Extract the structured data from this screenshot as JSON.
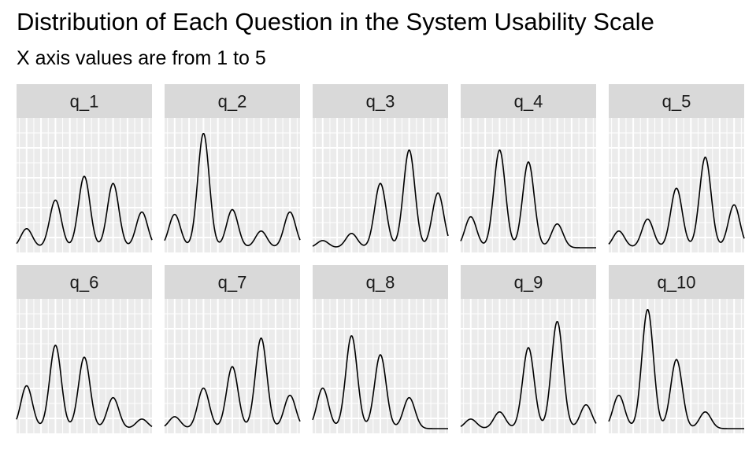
{
  "title": "Distribution of Each Question in the System Usability Scale",
  "subtitle": "X axis values are from 1 to 5",
  "colors": {
    "panel_background": "#ebebeb",
    "strip_background": "#d9d9d9",
    "grid": "#ffffff",
    "line": "#000000"
  },
  "chart_data": {
    "type": "line",
    "plot_kind": "density",
    "title": "Distribution of Each Question in the System Usability Scale",
    "subtitle": "X axis values are from 1 to 5",
    "facet_layout": "2 rows x 5 columns",
    "xlabel": "",
    "ylabel": "",
    "x_range": [
      1,
      5
    ],
    "axes_text_shown": false,
    "grid": true,
    "bandwidth": 0.2,
    "panels": [
      {
        "label": "q_1",
        "proportions": [
          0.08,
          0.2,
          0.3,
          0.27,
          0.15
        ]
      },
      {
        "label": "q_2",
        "proportions": [
          0.14,
          0.48,
          0.16,
          0.07,
          0.15
        ]
      },
      {
        "label": "q_3",
        "proportions": [
          0.03,
          0.06,
          0.27,
          0.41,
          0.23
        ]
      },
      {
        "label": "q_4",
        "proportions": [
          0.13,
          0.41,
          0.36,
          0.1,
          0.0
        ]
      },
      {
        "label": "q_5",
        "proportions": [
          0.07,
          0.12,
          0.25,
          0.38,
          0.18
        ]
      },
      {
        "label": "q_6",
        "proportions": [
          0.18,
          0.35,
          0.3,
          0.13,
          0.04
        ]
      },
      {
        "label": "q_7",
        "proportions": [
          0.05,
          0.17,
          0.26,
          0.38,
          0.14
        ]
      },
      {
        "label": "q_8",
        "proportions": [
          0.17,
          0.39,
          0.31,
          0.13,
          0.0
        ]
      },
      {
        "label": "q_9",
        "proportions": [
          0.04,
          0.07,
          0.34,
          0.45,
          0.1
        ]
      },
      {
        "label": "q_10",
        "proportions": [
          0.14,
          0.5,
          0.29,
          0.07,
          0.0
        ]
      }
    ]
  }
}
